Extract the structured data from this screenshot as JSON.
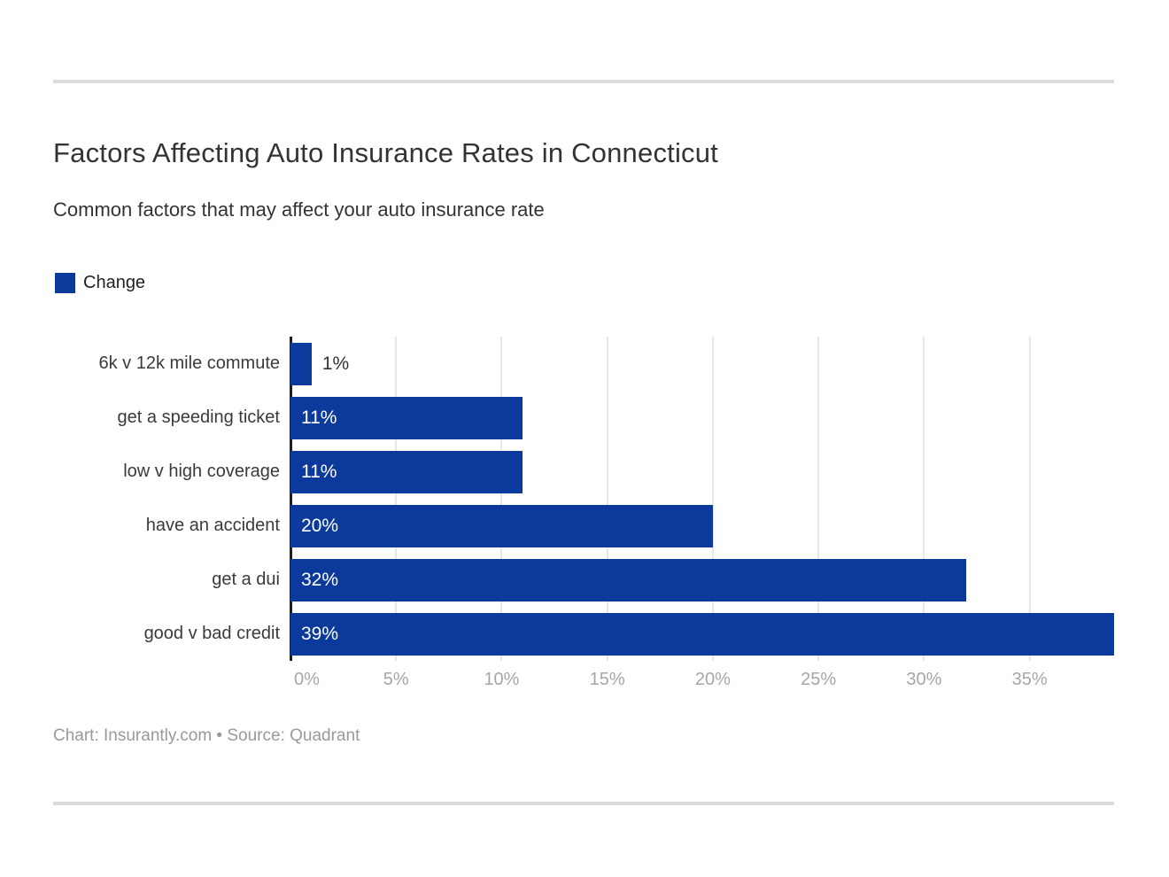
{
  "chart_data": {
    "type": "bar",
    "orientation": "horizontal",
    "title": "Factors Affecting Auto Insurance Rates in Connecticut",
    "subtitle": "Common factors that may affect your auto insurance rate",
    "legend": {
      "label": "Change",
      "position": "top-left"
    },
    "categories": [
      "6k v 12k mile commute",
      "get a speeding ticket",
      "low v high coverage",
      "have an accident",
      "get a dui",
      "good v bad credit"
    ],
    "series": [
      {
        "name": "Change",
        "values": [
          1,
          11,
          11,
          20,
          32,
          39
        ]
      }
    ],
    "value_labels": [
      "1%",
      "11%",
      "11%",
      "20%",
      "32%",
      "39%"
    ],
    "x_tick_labels": [
      "0%",
      "5%",
      "10%",
      "15%",
      "20%",
      "25%",
      "30%",
      "35%"
    ],
    "x_tick_values": [
      0,
      5,
      10,
      15,
      20,
      25,
      30,
      35
    ],
    "xlim": [
      0,
      39
    ],
    "xlabel": "",
    "ylabel": "",
    "grid": "vertical",
    "colors": {
      "bar": "#0b3a9c",
      "value_label_inside": "#ffffff",
      "value_label_outside": "#333333",
      "gridline": "#e7e7e7",
      "axis_line": "#1f1f1f",
      "tick_label": "#a6a6a6"
    }
  },
  "footer": {
    "attribution": "Chart: Insurantly.com • Source: Quadrant"
  }
}
